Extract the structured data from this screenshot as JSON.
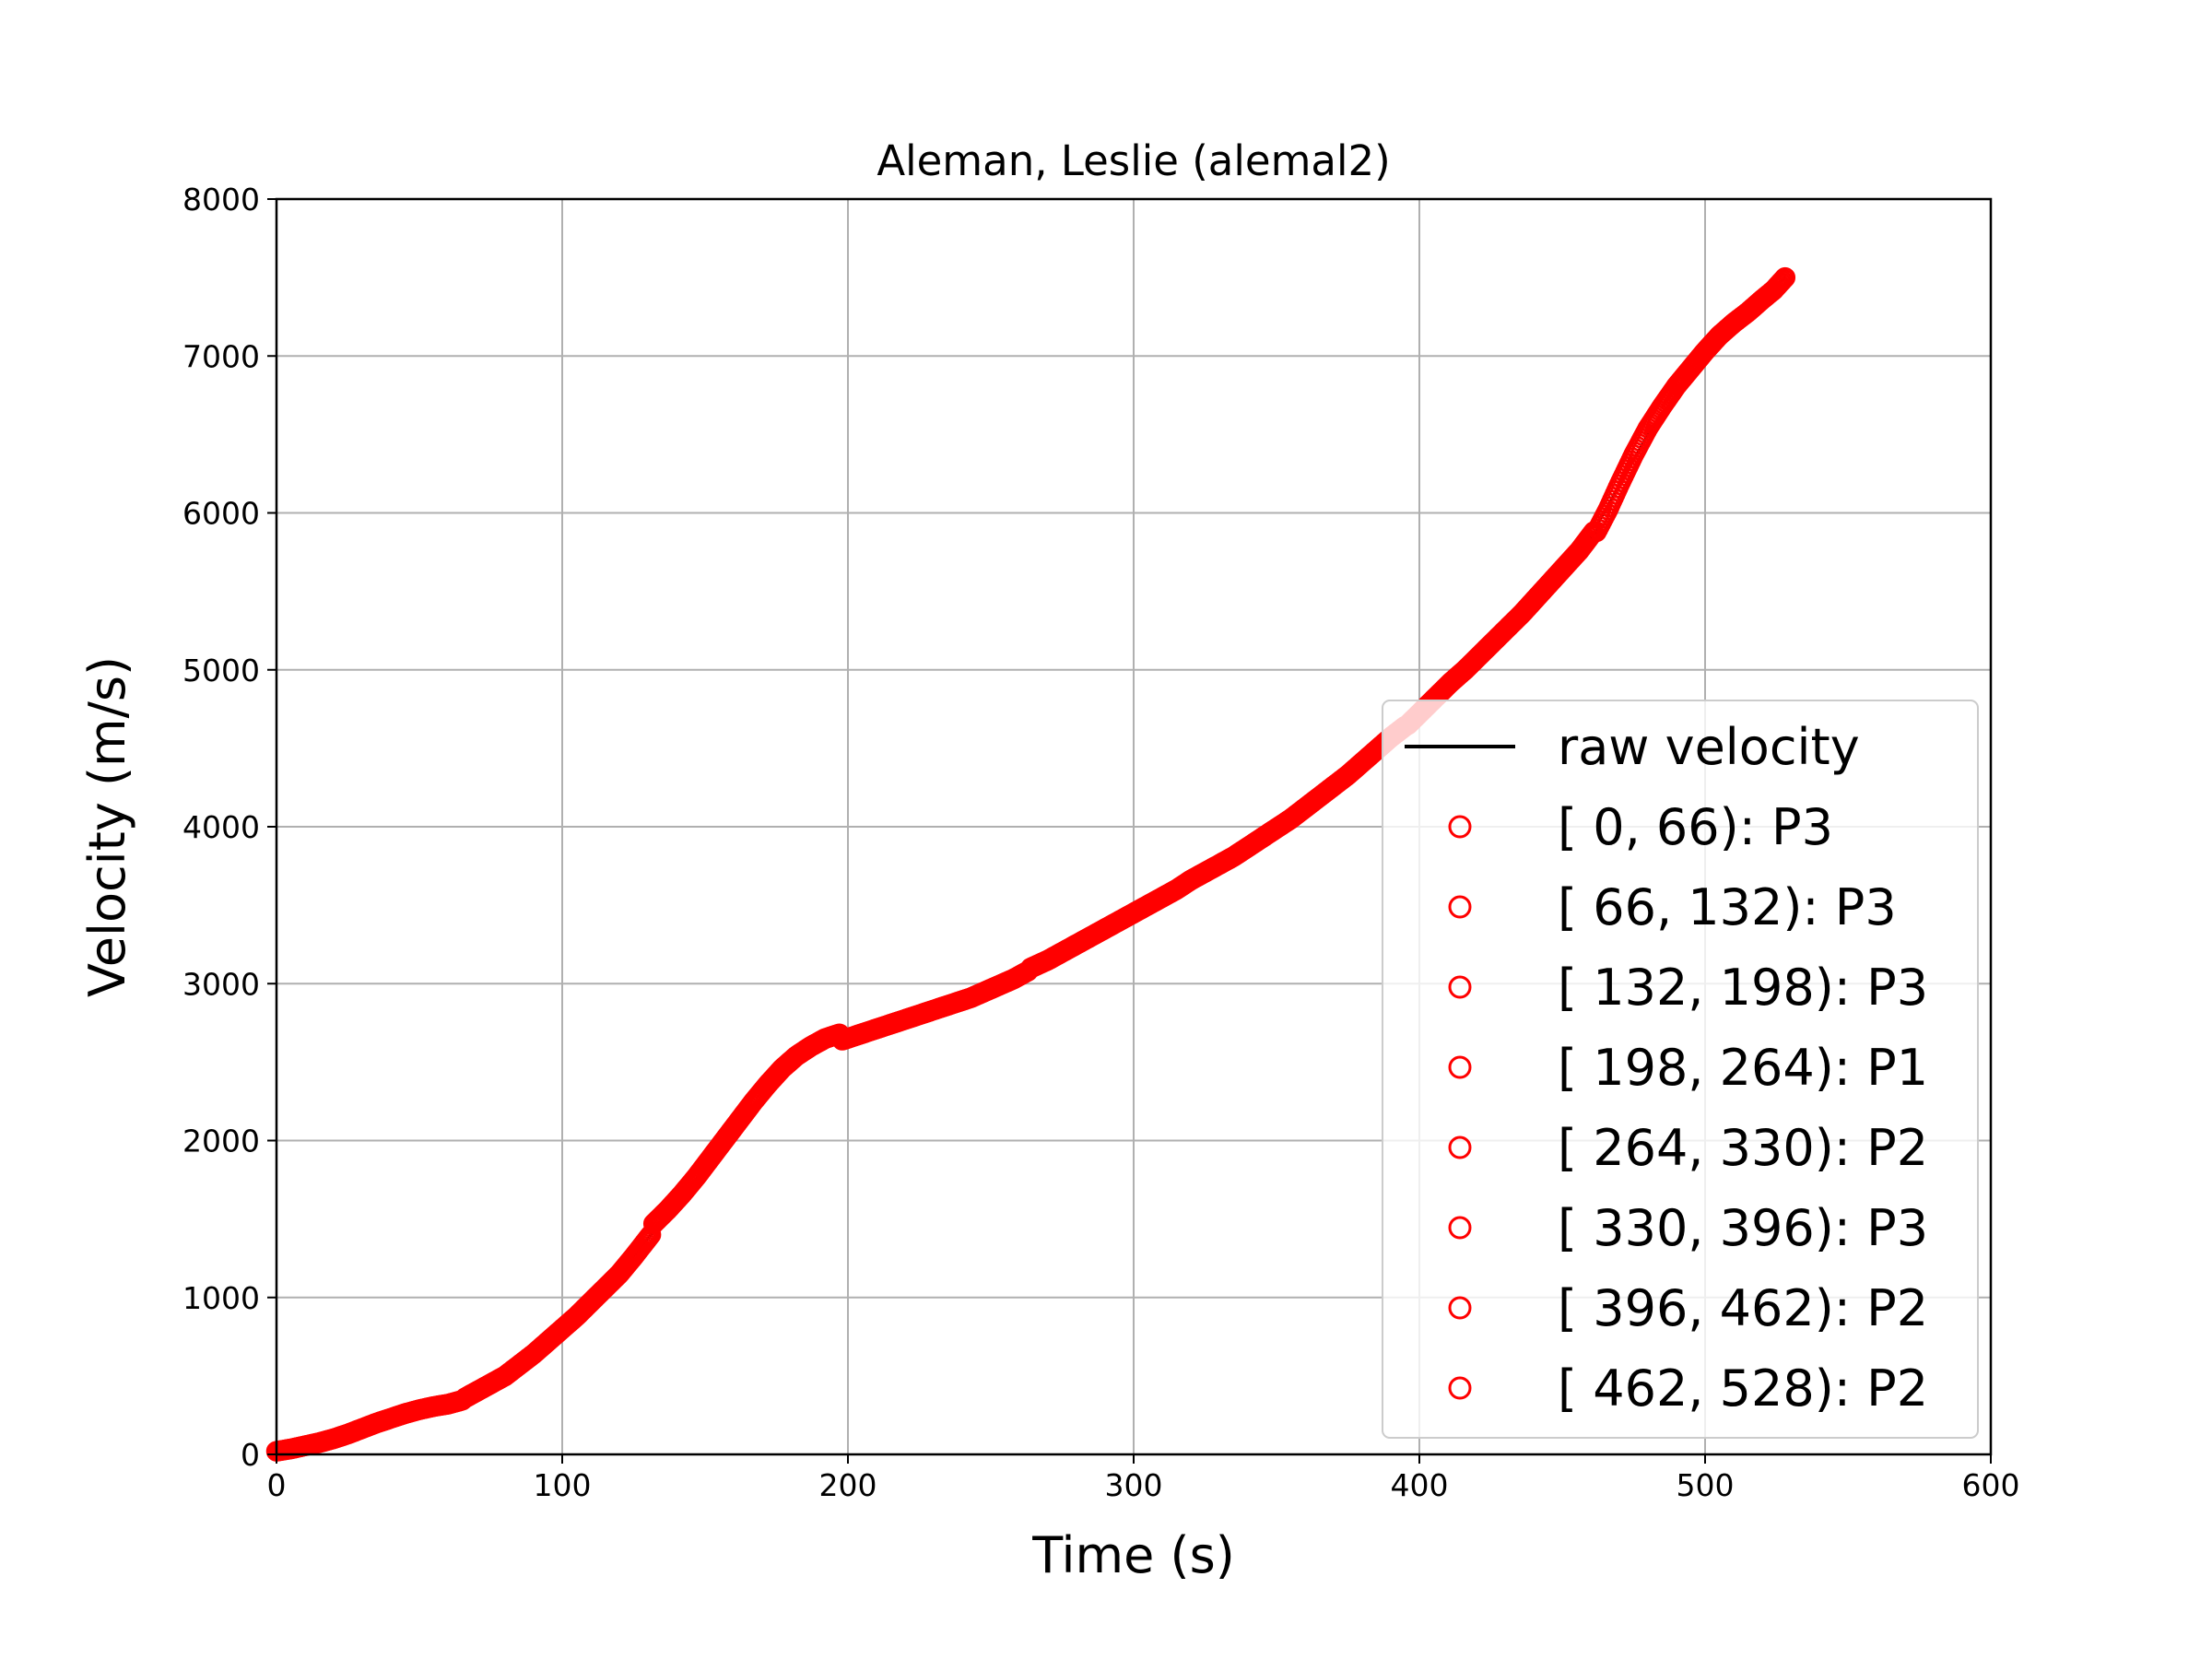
{
  "chart_data": {
    "type": "scatter",
    "title": "Aleman, Leslie (alemal2)",
    "xlabel": "Time (s)",
    "ylabel": "Velocity (m/s)",
    "xlim": [
      0,
      600
    ],
    "ylim": [
      0,
      8000
    ],
    "xticks": [
      0,
      100,
      200,
      300,
      400,
      500,
      600
    ],
    "yticks": [
      0,
      1000,
      2000,
      3000,
      4000,
      5000,
      6000,
      7000,
      8000
    ],
    "grid": true,
    "legend_position": "center-right",
    "colors": {
      "line": "#000000",
      "markers": "#ff0000",
      "grid": "#b0b0b0"
    },
    "line_series": {
      "name": "raw velocity",
      "x": [
        0,
        20,
        40,
        60,
        65,
        80,
        100,
        120,
        131,
        140,
        160,
        180,
        190,
        197,
        198,
        230,
        264,
        300,
        330,
        360,
        396,
        430,
        462,
        463,
        480,
        500,
        510,
        520,
        528
      ],
      "y": [
        0,
        100,
        230,
        320,
        360,
        530,
        800,
        1150,
        1400,
        1600,
        2050,
        2460,
        2620,
        2680,
        2640,
        2850,
        3100,
        3430,
        3750,
        4120,
        4650,
        5250,
        5880,
        5950,
        6500,
        6980,
        7200,
        7380,
        7500
      ]
    },
    "series": [
      {
        "name": "[ 0, 66): P3",
        "x_range": [
          0,
          66
        ],
        "x": [
          0,
          5,
          10,
          15,
          20,
          25,
          30,
          35,
          40,
          45,
          50,
          55,
          60,
          65
        ],
        "y": [
          20,
          35,
          55,
          75,
          100,
          130,
          165,
          200,
          230,
          260,
          285,
          305,
          320,
          345
        ]
      },
      {
        "name": "[ 66, 132): P3",
        "x_range": [
          66,
          132
        ],
        "x": [
          66,
          70,
          75,
          80,
          85,
          90,
          95,
          100,
          105,
          110,
          115,
          120,
          125,
          131
        ],
        "y": [
          360,
          400,
          450,
          500,
          570,
          640,
          720,
          800,
          880,
          970,
          1060,
          1150,
          1260,
          1400
        ]
      },
      {
        "name": "[ 132, 198): P3",
        "x_range": [
          132,
          198
        ],
        "x": [
          132,
          137,
          142,
          147,
          152,
          157,
          162,
          167,
          172,
          177,
          182,
          187,
          192,
          197
        ],
        "y": [
          1470,
          1560,
          1660,
          1770,
          1890,
          2010,
          2130,
          2250,
          2360,
          2460,
          2540,
          2600,
          2650,
          2680
        ]
      },
      {
        "name": "[ 198, 264): P1",
        "x_range": [
          198,
          264
        ],
        "x": [
          198,
          203,
          208,
          213,
          218,
          223,
          228,
          233,
          238,
          243,
          248,
          253,
          258,
          263
        ],
        "y": [
          2640,
          2670,
          2700,
          2730,
          2760,
          2790,
          2820,
          2850,
          2880,
          2910,
          2950,
          2990,
          3030,
          3080
        ]
      },
      {
        "name": "[ 264, 330): P2",
        "x_range": [
          264,
          330
        ],
        "x": [
          264,
          270,
          275,
          280,
          285,
          290,
          295,
          300,
          305,
          310,
          315,
          320,
          325,
          329
        ],
        "y": [
          3100,
          3150,
          3200,
          3250,
          3300,
          3350,
          3400,
          3450,
          3500,
          3550,
          3600,
          3660,
          3710,
          3750
        ]
      },
      {
        "name": "[ 330, 396): P3",
        "x_range": [
          330,
          396
        ],
        "x": [
          330,
          335,
          340,
          345,
          350,
          355,
          360,
          365,
          370,
          375,
          380,
          385,
          390,
          395
        ],
        "y": [
          3760,
          3810,
          3870,
          3930,
          3990,
          4050,
          4120,
          4190,
          4260,
          4330,
          4410,
          4490,
          4570,
          4640
        ]
      },
      {
        "name": "[ 396, 462): P2",
        "x_range": [
          396,
          462
        ],
        "x": [
          396,
          401,
          406,
          411,
          416,
          421,
          426,
          431,
          436,
          441,
          446,
          451,
          456,
          461
        ],
        "y": [
          4650,
          4740,
          4830,
          4920,
          5000,
          5090,
          5180,
          5270,
          5360,
          5460,
          5560,
          5660,
          5760,
          5880
        ]
      },
      {
        "name": "[ 462, 528): P2",
        "x_range": [
          462,
          528
        ],
        "x": [
          462,
          466,
          470,
          475,
          480,
          485,
          490,
          495,
          500,
          505,
          510,
          515,
          520,
          524,
          528
        ],
        "y": [
          5880,
          6020,
          6180,
          6370,
          6540,
          6680,
          6810,
          6920,
          7030,
          7130,
          7210,
          7280,
          7360,
          7420,
          7500
        ]
      }
    ]
  }
}
